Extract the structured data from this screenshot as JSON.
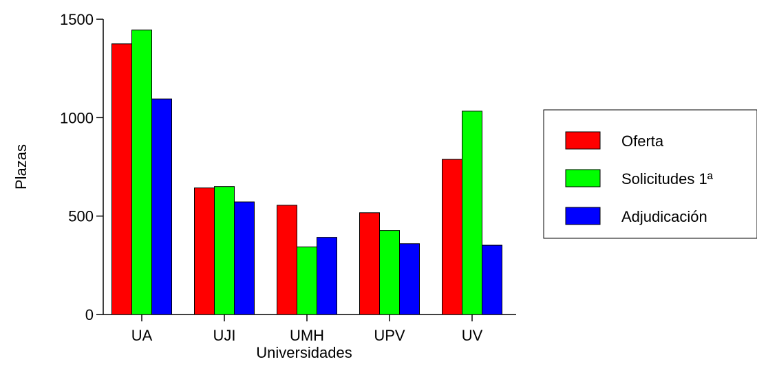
{
  "chart_data": {
    "type": "bar",
    "title": "",
    "xlabel": "Universidades",
    "ylabel": "Plazas",
    "ylim": [
      0,
      1500
    ],
    "yticks": [
      0,
      500,
      1000,
      1500
    ],
    "categories": [
      "UA",
      "UJI",
      "UMH",
      "UPV",
      "UV"
    ],
    "series": [
      {
        "name": "Oferta",
        "color": "#ff0000",
        "values": [
          1375,
          643,
          555,
          517,
          788
        ]
      },
      {
        "name": "Solicitudes 1ª",
        "color": "#00ff00",
        "values": [
          1445,
          650,
          343,
          427,
          1033
        ]
      },
      {
        "name": "Adjudicación",
        "color": "#0000ff",
        "values": [
          1095,
          572,
          392,
          360,
          352
        ]
      }
    ],
    "legend_position": "right",
    "grid": false
  }
}
